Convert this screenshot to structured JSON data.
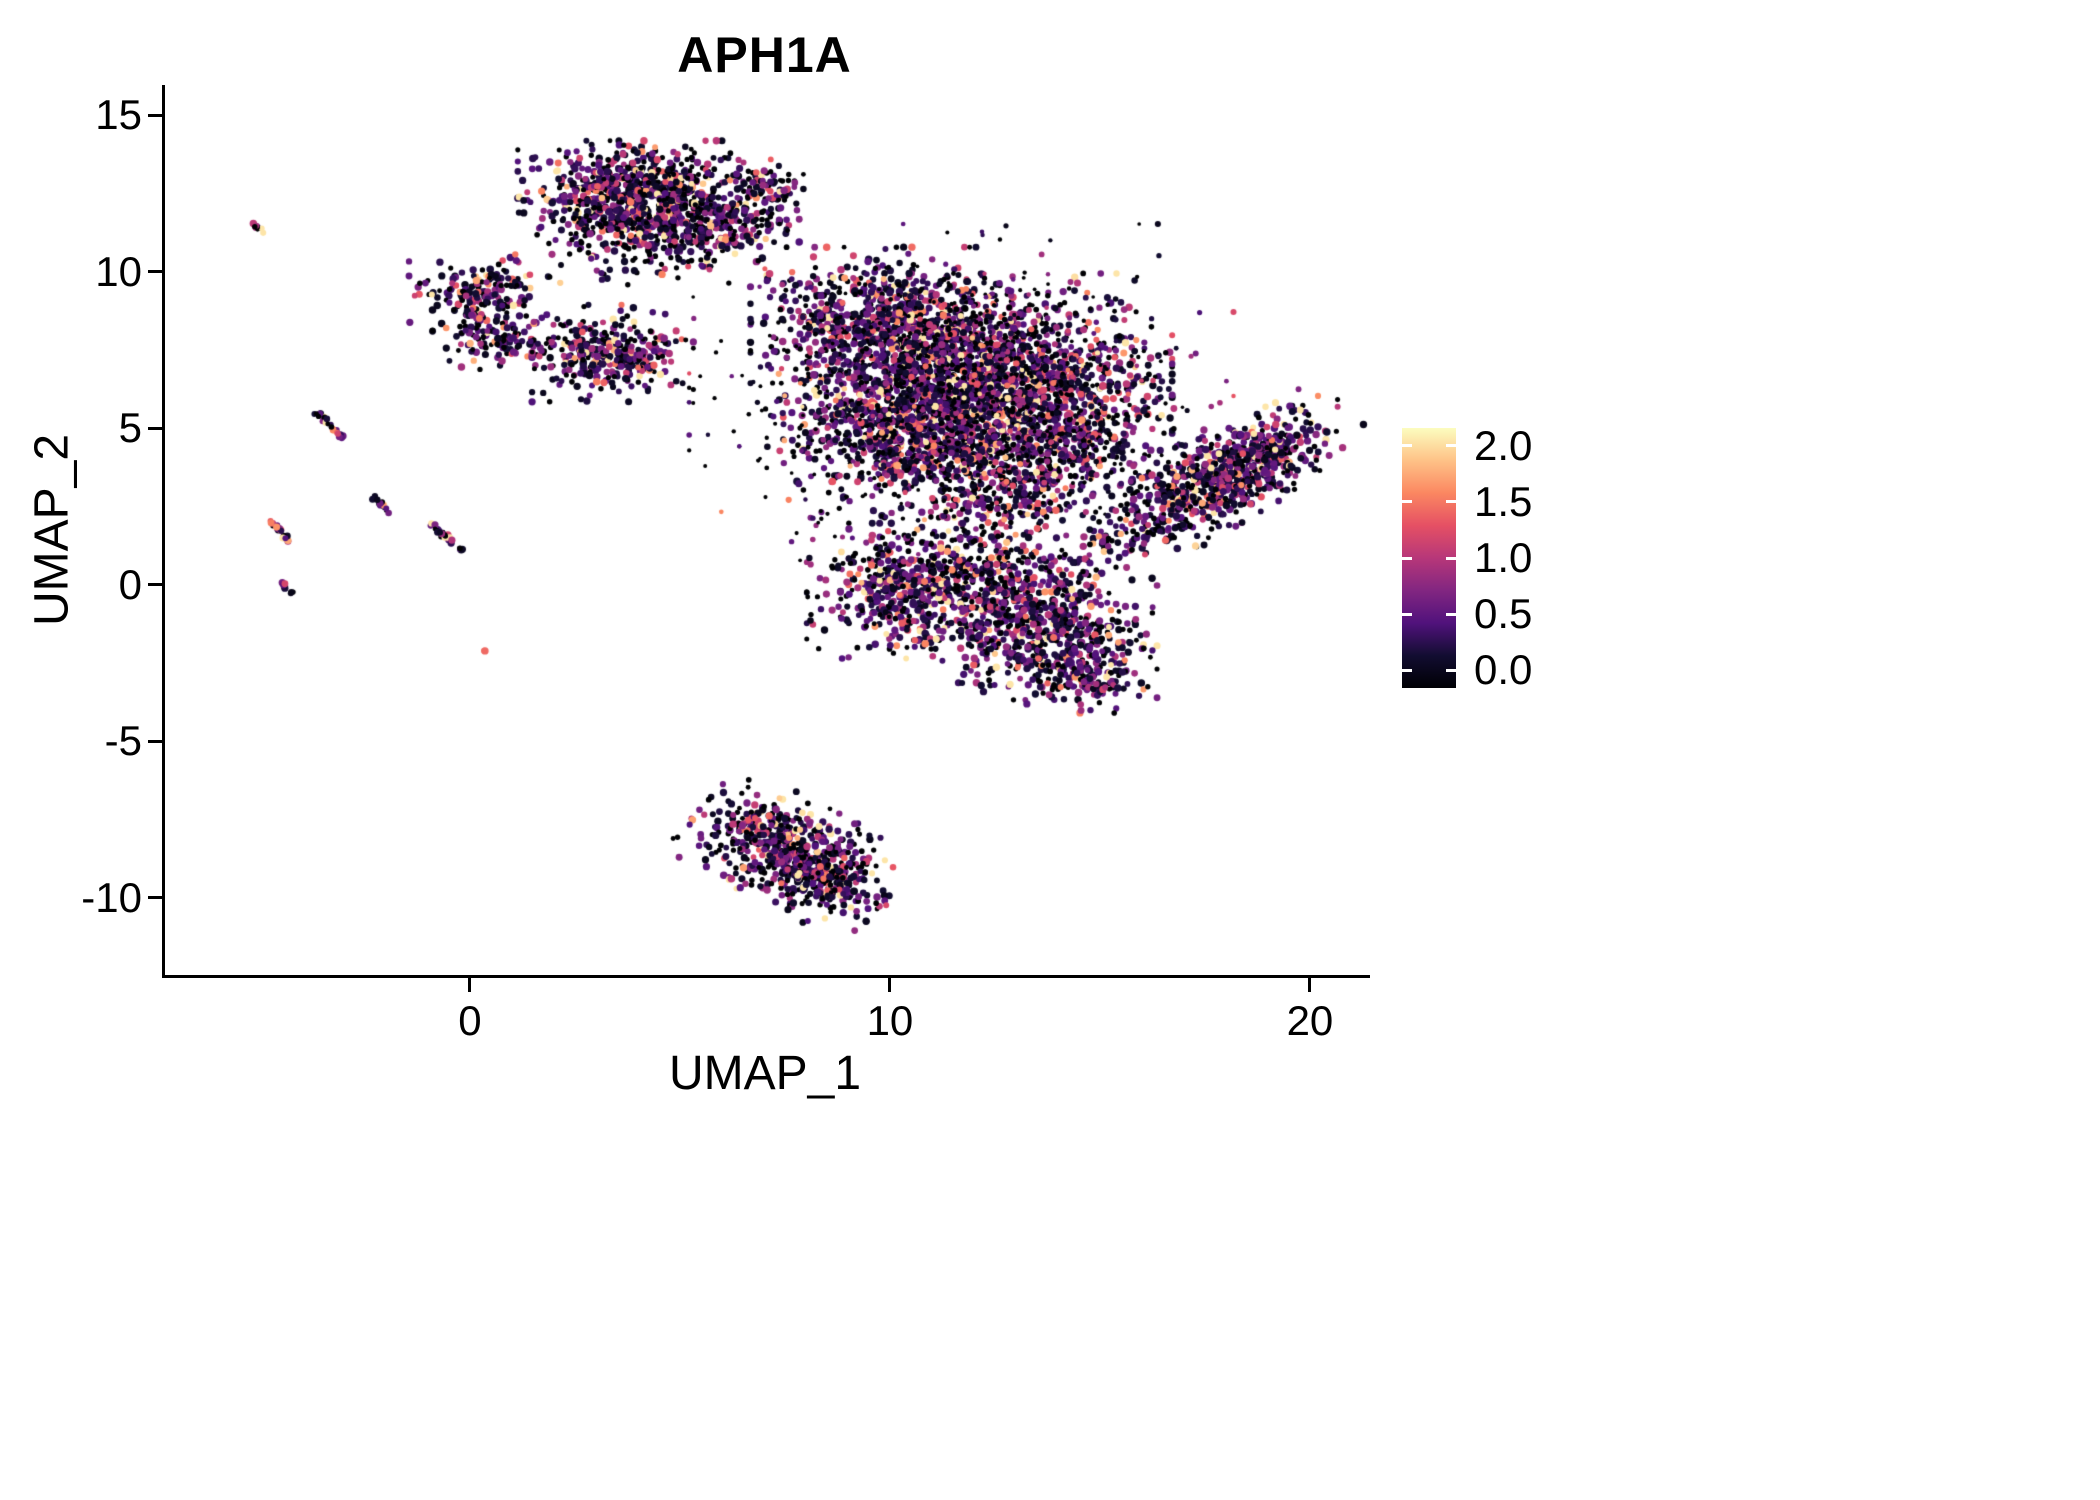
{
  "chart_data": {
    "type": "scatter",
    "title": "APH1A",
    "xlabel": "UMAP_1",
    "ylabel": "UMAP_2",
    "xlim": [
      -7.26,
      21.43
    ],
    "ylim": [
      -12.47,
      15.96
    ],
    "grid": false,
    "legend_position": "right",
    "point_color_encoding": "expression level (feature plot, magma colormap, 0 = black, 2 = pale yellow)",
    "x_ticks": [
      {
        "value": 0,
        "label": "0"
      },
      {
        "value": 10,
        "label": "10"
      },
      {
        "value": 20,
        "label": "20"
      }
    ],
    "y_ticks": [
      {
        "value": 15,
        "label": "15"
      },
      {
        "value": 10,
        "label": "10"
      },
      {
        "value": 5,
        "label": "5"
      },
      {
        "value": 0,
        "label": "0"
      },
      {
        "value": -5,
        "label": "-5"
      },
      {
        "value": -10,
        "label": "-10"
      }
    ],
    "colorbar": {
      "min": 0.0,
      "max": 2.0,
      "colormap": "magma",
      "stops": [
        "#000004",
        "#120d31",
        "#51127c",
        "#822681",
        "#b73779",
        "#e55064",
        "#fb8761",
        "#fec287",
        "#fcfdbf"
      ],
      "ticks": [
        {
          "value": 2.0,
          "label": "2.0"
        },
        {
          "value": 1.5,
          "label": "1.5"
        },
        {
          "value": 1.0,
          "label": "1.0"
        },
        {
          "value": 0.5,
          "label": "0.5"
        },
        {
          "value": 0.0,
          "label": "0.0"
        }
      ]
    },
    "clusters": [
      {
        "name": "top-cluster-core",
        "shape": "gauss",
        "cx": 3.9,
        "cy": 12.5,
        "sx": 1.15,
        "sy": 0.7,
        "rot": 0,
        "n": 750
      },
      {
        "name": "top-cluster-right-ext",
        "shape": "gauss",
        "cx": 5.8,
        "cy": 11.6,
        "sx": 0.85,
        "sy": 0.6,
        "rot": 0,
        "n": 300
      },
      {
        "name": "top-cluster-detached",
        "shape": "gauss",
        "cx": 7.1,
        "cy": 12.8,
        "sx": 0.35,
        "sy": 0.35,
        "rot": 0,
        "n": 60
      },
      {
        "name": "top-cluster-sparse-below",
        "shape": "gauss",
        "cx": 4.0,
        "cy": 10.9,
        "sx": 1.0,
        "sy": 0.55,
        "rot": 0,
        "n": 150,
        "zero_frac": 0.4
      },
      {
        "name": "left-blob-upper",
        "shape": "gauss",
        "cx": 0.35,
        "cy": 9.35,
        "sx": 0.75,
        "sy": 0.5,
        "rot": 0,
        "n": 170
      },
      {
        "name": "left-blob-lower",
        "shape": "gauss",
        "cx": 0.55,
        "cy": 7.95,
        "sx": 0.6,
        "sy": 0.45,
        "rot": 0,
        "n": 130
      },
      {
        "name": "mid-left-blob",
        "shape": "gauss",
        "cx": 3.4,
        "cy": 7.4,
        "sx": 0.8,
        "sy": 0.65,
        "rot": 0,
        "n": 330
      },
      {
        "name": "main-upper-left",
        "shape": "gauss",
        "cx": 9.8,
        "cy": 8.5,
        "sx": 1.3,
        "sy": 0.95,
        "rot": 0,
        "n": 650
      },
      {
        "name": "main-core",
        "shape": "gauss",
        "cx": 12.4,
        "cy": 6.7,
        "sx": 1.8,
        "sy": 1.35,
        "rot": 0,
        "n": 1500
      },
      {
        "name": "main-lower-left",
        "shape": "gauss",
        "cx": 10.4,
        "cy": 4.9,
        "sx": 1.4,
        "sy": 1.15,
        "rot": 0,
        "n": 850
      },
      {
        "name": "main-right",
        "shape": "gauss",
        "cx": 14.0,
        "cy": 4.8,
        "sx": 1.15,
        "sy": 1.0,
        "rot": 0,
        "n": 450
      },
      {
        "name": "main-bottom",
        "shape": "gauss",
        "cx": 12.8,
        "cy": 2.9,
        "sx": 0.85,
        "sy": 0.6,
        "rot": 0,
        "n": 200
      },
      {
        "name": "main-halo-sparse",
        "shape": "gauss",
        "cx": 11.7,
        "cy": 6.0,
        "sx": 2.7,
        "sy": 2.3,
        "rot": 0,
        "n": 700,
        "zero_frac": 0.5,
        "size": 2.4
      },
      {
        "name": "lower-sub-left",
        "shape": "gauss",
        "cx": 10.3,
        "cy": -0.2,
        "sx": 0.95,
        "sy": 0.9,
        "rot": 0,
        "n": 430
      },
      {
        "name": "lower-sub-mid",
        "shape": "gauss",
        "cx": 12.2,
        "cy": 0.4,
        "sx": 1.1,
        "sy": 0.8,
        "rot": 0,
        "n": 300,
        "zero_frac": 0.35
      },
      {
        "name": "lower-sub-right",
        "shape": "gauss",
        "cx": 13.6,
        "cy": -1.4,
        "sx": 1.15,
        "sy": 0.95,
        "rot": 0,
        "n": 600
      },
      {
        "name": "lower-sub-tail",
        "shape": "gauss",
        "cx": 14.7,
        "cy": -2.9,
        "sx": 0.6,
        "sy": 0.5,
        "rot": 0,
        "n": 140
      },
      {
        "name": "right-wing",
        "shape": "gauss",
        "cx": 17.6,
        "cy": 3.2,
        "sx": 1.7,
        "sy": 0.6,
        "rot": 0.67,
        "n": 650
      },
      {
        "name": "right-wing-upper",
        "shape": "gauss",
        "cx": 18.5,
        "cy": 3.8,
        "sx": 0.9,
        "sy": 0.5,
        "rot": 0.67,
        "n": 220
      },
      {
        "name": "bottom-island",
        "shape": "gauss",
        "cx": 7.7,
        "cy": -8.6,
        "sx": 1.1,
        "sy": 0.7,
        "rot": -0.6,
        "n": 600
      },
      {
        "name": "bottom-island-edge",
        "shape": "gauss",
        "cx": 8.4,
        "cy": -9.4,
        "sx": 0.7,
        "sy": 0.35,
        "rot": -0.75,
        "n": 120
      },
      {
        "name": "streak-far-left-top",
        "shape": "line",
        "cx": -5.05,
        "cy": 11.4,
        "sx": 0.14,
        "sy": 0.03,
        "rot": -0.85,
        "n": 10,
        "expr_scale": 0.9
      },
      {
        "name": "streak-left-mid",
        "shape": "line",
        "cx": -3.35,
        "cy": 5.1,
        "sx": 0.26,
        "sy": 0.035,
        "rot": -0.95,
        "n": 26,
        "expr_scale": 1.0
      },
      {
        "name": "streak-left-lower",
        "shape": "line",
        "cx": -4.55,
        "cy": 1.75,
        "sx": 0.22,
        "sy": 0.035,
        "rot": -0.95,
        "n": 22,
        "expr_scale": 1.1
      },
      {
        "name": "streak-left-small",
        "shape": "line",
        "cx": -2.1,
        "cy": 2.55,
        "sx": 0.16,
        "sy": 0.03,
        "rot": -0.95,
        "n": 14,
        "expr_scale": 0.9
      },
      {
        "name": "streak-near-zero",
        "shape": "line",
        "cx": -0.55,
        "cy": 1.5,
        "sx": 0.3,
        "sy": 0.035,
        "rot": -0.85,
        "n": 30,
        "expr_scale": 0.8
      },
      {
        "name": "streak-left-bottom",
        "shape": "line",
        "cx": -4.35,
        "cy": -0.1,
        "sx": 0.12,
        "sy": 0.03,
        "rot": -0.95,
        "n": 10,
        "expr_scale": 0.6
      },
      {
        "name": "lone-dot",
        "shape": "line",
        "cx": 0.35,
        "cy": -2.1,
        "sx": 0.02,
        "sy": 0.02,
        "rot": 0,
        "n": 2,
        "expr_fixed": 1.45
      }
    ]
  }
}
